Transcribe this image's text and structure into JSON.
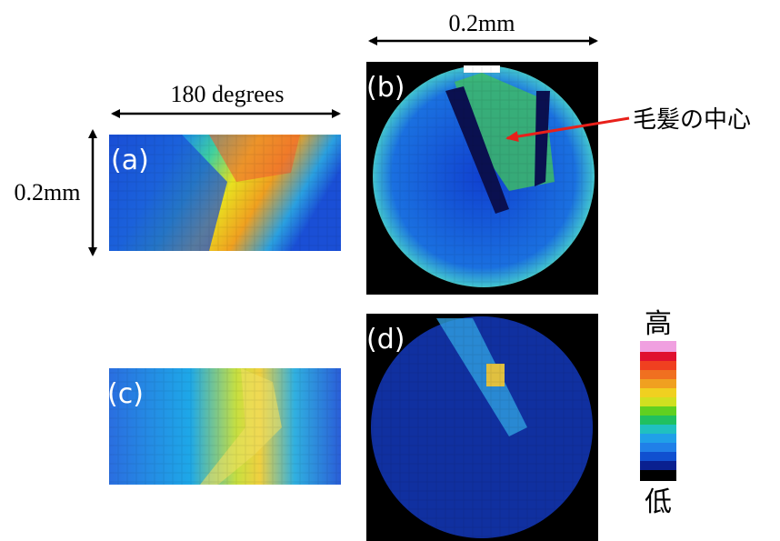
{
  "scales": {
    "a_width": "180 degrees",
    "a_height": "0.2mm",
    "b_width": "0.2mm"
  },
  "panels": [
    {
      "label": "(a)"
    },
    {
      "label": "(b)"
    },
    {
      "label": "(c)"
    },
    {
      "label": "(d)"
    }
  ],
  "annotation": "毛髪の中心",
  "colorbar": {
    "high": "高",
    "low": "低"
  }
}
